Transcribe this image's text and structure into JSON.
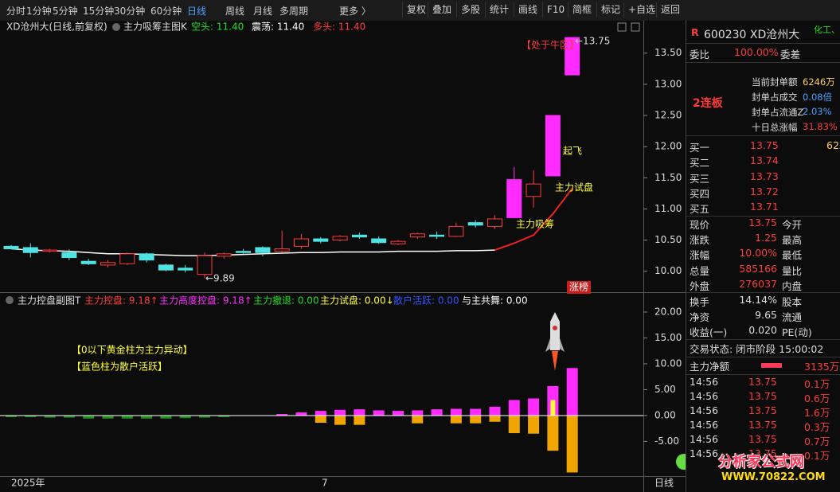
{
  "toolbar": {
    "periods": [
      "分时",
      "1分钟",
      "5分钟",
      "15分钟",
      "30分钟",
      "60分钟",
      "日线",
      "周线",
      "月线",
      "多周期",
      "更多 〉"
    ],
    "tools": [
      "复权",
      "叠加",
      "多股",
      "统计",
      "画线",
      "F10",
      "简框",
      "标记",
      "+自选",
      "返回"
    ]
  },
  "chart_data": [
    {
      "type": "candlestick",
      "title": "XD沧州大(日线,前复权)",
      "indicator": "主力吸筹主图K",
      "legend": [
        {
          "text": "空头: 11.40",
          "color": "#22dd22"
        },
        {
          "text": "震荡: 11.40",
          "color": "#ffffff"
        },
        {
          "text": "多头: 11.40",
          "color": "#ff3b3b"
        }
      ],
      "up_color": "#ff3b3b",
      "open": [
        10.4,
        10.38,
        10.32,
        10.3,
        10.16,
        10.1,
        10.12,
        10.28,
        10.1,
        10.05,
        9.95,
        10.24,
        10.32,
        10.38,
        10.32,
        10.4,
        10.52,
        10.5,
        10.58,
        10.52,
        10.44,
        10.55,
        10.58,
        10.56,
        10.78,
        10.72,
        10.86,
        11.2,
        11.53,
        13.15
      ],
      "high": [
        10.42,
        10.45,
        10.36,
        10.35,
        10.2,
        10.18,
        10.3,
        10.3,
        10.12,
        10.1,
        10.3,
        10.3,
        10.36,
        10.4,
        10.65,
        10.6,
        10.55,
        10.58,
        10.62,
        10.56,
        10.5,
        10.62,
        10.64,
        10.78,
        10.82,
        10.9,
        11.67,
        11.62,
        12.5,
        13.75
      ],
      "low": [
        10.36,
        10.22,
        10.3,
        10.18,
        10.1,
        10.06,
        10.1,
        10.14,
        10.0,
        9.98,
        9.89,
        10.2,
        10.28,
        10.24,
        10.3,
        10.36,
        10.45,
        10.48,
        10.52,
        10.44,
        10.42,
        10.52,
        10.52,
        10.55,
        10.7,
        10.68,
        10.86,
        11.02,
        11.53,
        13.15
      ],
      "close": [
        10.36,
        10.3,
        10.34,
        10.22,
        10.12,
        10.14,
        10.28,
        10.18,
        10.02,
        10.02,
        10.25,
        10.28,
        10.3,
        10.3,
        10.36,
        10.52,
        10.48,
        10.56,
        10.55,
        10.46,
        10.48,
        10.6,
        10.56,
        10.72,
        10.74,
        10.84,
        11.47,
        11.4,
        12.5,
        13.75
      ],
      "colors": [
        "#4fe3e3",
        "#4fe3e3",
        "#ff3b3b",
        "#4fe3e3",
        "#4fe3e3",
        "#ff3b3b",
        "#ff3b3b",
        "#4fe3e3",
        "#4fe3e3",
        "#4fe3e3",
        "#ff3b3b",
        "#ff3b3b",
        "#4fe3e3",
        "#4fe3e3",
        "#ff3b3b",
        "#ff3b3b",
        "#4fe3e3",
        "#ff3b3b",
        "#4fe3e3",
        "#4fe3e3",
        "#ff3b3b",
        "#ff3b3b",
        "#4fe3e3",
        "#ff3b3b",
        "#4fe3e3",
        "#ff3b3b",
        "#ff2bff",
        "#ff3b3b",
        "#ff2bff",
        "#ff2bff"
      ],
      "lines": [
        {
          "color": "#ffffff",
          "values": [
            10.36,
            10.34,
            10.33,
            10.32,
            10.3,
            10.28,
            10.28,
            10.27,
            10.26,
            10.25,
            10.25,
            10.26,
            10.27,
            10.28,
            10.29,
            10.3,
            10.3,
            10.31,
            10.31,
            10.31,
            10.32,
            10.32,
            10.32,
            10.33,
            10.33,
            10.34,
            null,
            null,
            null,
            null
          ]
        },
        {
          "color": "#ee2222",
          "values": [
            null,
            null,
            null,
            null,
            null,
            null,
            null,
            null,
            null,
            null,
            null,
            null,
            null,
            null,
            null,
            null,
            null,
            null,
            null,
            null,
            null,
            null,
            null,
            null,
            null,
            10.34,
            10.45,
            10.58,
            10.92,
            11.33
          ]
        }
      ],
      "ylim": [
        9.69,
        14.02
      ],
      "yticks": [
        {
          "value": 10,
          "label": "10.00"
        },
        {
          "value": 10.5,
          "label": "10.50"
        },
        {
          "value": 11,
          "label": "11.00"
        },
        {
          "value": 11.5,
          "label": "11.50"
        },
        {
          "value": 12,
          "label": "12.00"
        },
        {
          "value": 12.5,
          "label": "12.50"
        },
        {
          "value": 13,
          "label": "13.00"
        },
        {
          "value": 13.5,
          "label": "13.50"
        }
      ],
      "annotations": [
        {
          "text": "【处于牛区】",
          "color": "#ff3b3b"
        },
        {
          "text": "←13.75",
          "color": "#dddddd"
        },
        {
          "text": "起飞",
          "color": "#ffff33"
        },
        {
          "text": "主力试盘",
          "color": "#ffff33"
        },
        {
          "text": "主力吸筹",
          "color": "#ffff33"
        },
        {
          "text": "←9.89",
          "color": "#dddddd"
        },
        {
          "text": "涨榜",
          "color": "#ffffff"
        }
      ]
    },
    {
      "type": "bar",
      "title": "主力控盘副图T",
      "legend": [
        {
          "text": "主力控盘: 9.18↑",
          "color": "#ff3b3b"
        },
        {
          "text": "主力高度控盘: 9.18↑",
          "color": "#ff2bff"
        },
        {
          "text": "主力撤退: 0.00",
          "color": "#22dd22"
        },
        {
          "text": "主力试盘: 0.00↓",
          "color": "#ffff33"
        },
        {
          "text": "散户活跃: 0.00",
          "color": "#3355ff"
        },
        {
          "text": "与主共舞: 0.00",
          "color": "#ffffff"
        }
      ],
      "series": [
        {
          "color": "#1f8a1f",
          "values": [
            -0.3,
            -0.3,
            -0.4,
            -0.4,
            -0.6,
            -0.6,
            -0.6,
            -0.6,
            -0.6,
            -0.5,
            -0.4,
            -0.3,
            null,
            null,
            null,
            null,
            null,
            null,
            null,
            null,
            null,
            null,
            null,
            null,
            null,
            null,
            null,
            null,
            null,
            null
          ]
        },
        {
          "color": "#ff2bff",
          "values": [
            null,
            null,
            null,
            null,
            null,
            null,
            null,
            null,
            null,
            null,
            null,
            null,
            null,
            null,
            0.3,
            0.6,
            0.9,
            1.1,
            1.2,
            1.0,
            0.9,
            1.0,
            1.2,
            1.3,
            1.3,
            1.7,
            3.0,
            3.3,
            5.7,
            9.18
          ]
        },
        {
          "color": "#f0a500",
          "values": [
            null,
            null,
            null,
            null,
            null,
            null,
            null,
            null,
            null,
            null,
            null,
            null,
            null,
            null,
            null,
            null,
            -1.4,
            -1.8,
            -1.8,
            null,
            null,
            -1.5,
            null,
            -1.5,
            -1.5,
            -1.2,
            -3.4,
            -3.5,
            -6.8,
            -11.0
          ]
        },
        {
          "color": "#ffff33",
          "values": [
            null,
            null,
            null,
            null,
            null,
            null,
            null,
            null,
            null,
            null,
            null,
            null,
            null,
            null,
            null,
            null,
            null,
            null,
            null,
            null,
            null,
            null,
            null,
            null,
            null,
            null,
            null,
            null,
            3.0,
            null
          ]
        }
      ],
      "ylim": [
        -11.7,
        22.15
      ],
      "yticks": [
        {
          "value": -5,
          "label": "-5.00"
        },
        {
          "value": 0,
          "label": "0.00"
        },
        {
          "value": 5,
          "label": "5.00"
        },
        {
          "value": 10,
          "label": "10.00"
        },
        {
          "value": 15,
          "label": "15.00"
        },
        {
          "value": 20,
          "label": "20.00"
        }
      ],
      "annotations": [
        {
          "text": "【0以下黄金柱为主力异动】",
          "color": "#ffff33"
        },
        {
          "text": "【蓝色柱为散户活跃】",
          "color": "#ffff33"
        }
      ],
      "x_labels": [
        "2025年",
        "7"
      ],
      "period_label": "日线"
    }
  ],
  "quote": {
    "r": "R",
    "code_name": "600230 XD沧州大",
    "sector": "化工、",
    "weibi": [
      "委比",
      "100.00%",
      "委差"
    ],
    "board": "2连板",
    "seal": [
      [
        "当前封单额",
        "6246万"
      ],
      [
        "封单占成交",
        "0.08倍"
      ],
      [
        "封单占流通Z",
        "2.03%"
      ],
      [
        "十日总涨幅",
        "31.83%"
      ]
    ],
    "bids": [
      [
        "买一",
        "13.75",
        "62"
      ],
      [
        "买二",
        "13.74"
      ],
      [
        "买三",
        "13.73"
      ],
      [
        "买四",
        "13.72"
      ],
      [
        "买五",
        "13.71"
      ]
    ],
    "stats": [
      [
        "现价",
        "13.75",
        "今开"
      ],
      [
        "涨跌",
        "1.25",
        "最高"
      ],
      [
        "涨幅",
        "10.00%",
        "最低"
      ],
      [
        "总量",
        "585166",
        "量比"
      ],
      [
        "外盘",
        "276037",
        "内盘"
      ]
    ],
    "stats2": [
      [
        "换手",
        "14.14%",
        "股本"
      ],
      [
        "净资",
        "9.65",
        "流通"
      ],
      [
        "收益(一)",
        "0.020",
        "PE(动)"
      ]
    ],
    "status": "交易状态: 闭市阶段 15:00:02",
    "net": [
      "主力净额",
      "3135万"
    ],
    "trades": [
      [
        "14:56",
        "13.75",
        "0.1万"
      ],
      [
        "14:56",
        "13.75",
        "0.6万"
      ],
      [
        "14:56",
        "13.75",
        "1.6万"
      ],
      [
        "14:56",
        "13.75",
        "0.3万"
      ],
      [
        "14:56",
        "13.75",
        "0.7万"
      ],
      [
        "14:56",
        "13.75",
        "0.1万"
      ]
    ]
  },
  "watermark": [
    "分析家公式网",
    "WWW.70822.COM"
  ]
}
